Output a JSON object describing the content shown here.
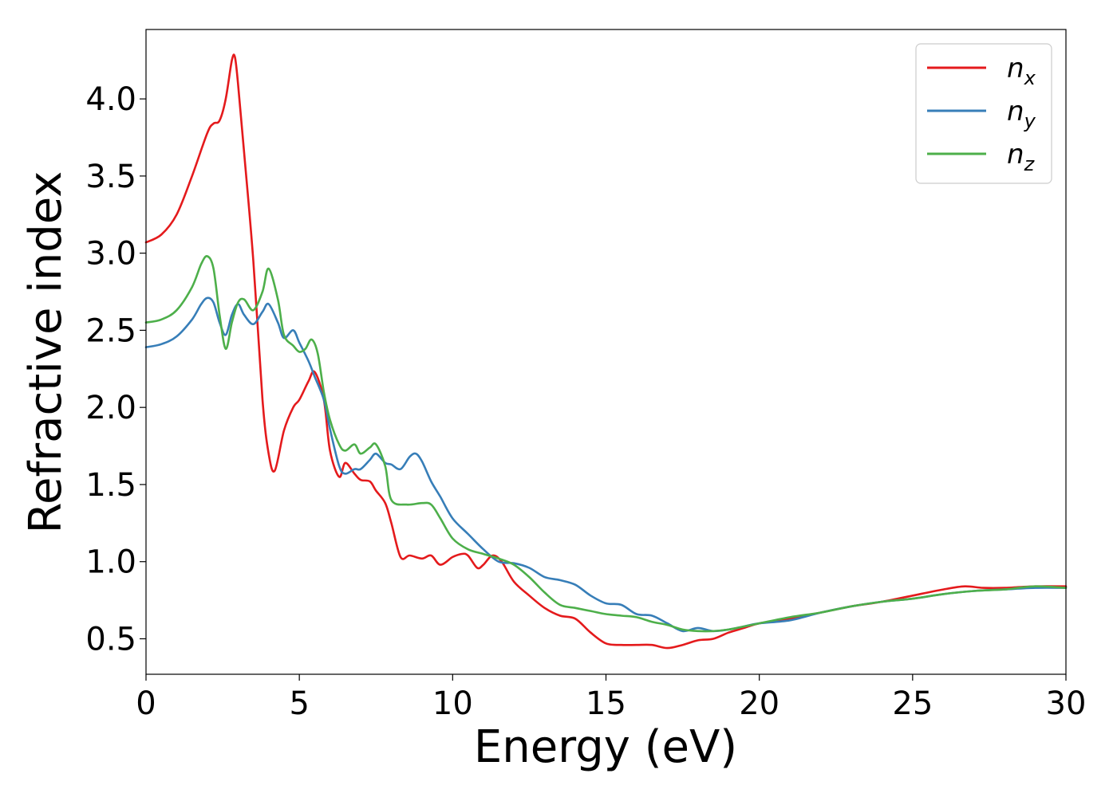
{
  "chart_data": {
    "type": "line",
    "xlabel": "Energy (eV)",
    "ylabel": "Refractive index",
    "xlim": [
      0,
      30
    ],
    "ylim": [
      0.27,
      4.45
    ],
    "xticks": [
      0,
      5,
      10,
      15,
      20,
      25,
      30
    ],
    "xtick_labels": [
      "0",
      "5",
      "10",
      "15",
      "20",
      "25",
      "30"
    ],
    "yticks": [
      0.5,
      1.0,
      1.5,
      2.0,
      2.5,
      3.0,
      3.5,
      4.0
    ],
    "ytick_labels": [
      "0.5",
      "1.0",
      "1.5",
      "2.0",
      "2.5",
      "3.0",
      "3.5",
      "4.0"
    ],
    "grid": false,
    "legend_position": "top-right",
    "series": [
      {
        "name_base": "n",
        "name_sub": "x",
        "color": "#e41a1c",
        "x": [
          0,
          0.5,
          1.0,
          1.5,
          2.0,
          2.2,
          2.4,
          2.6,
          2.8,
          2.9,
          3.0,
          3.2,
          3.5,
          3.8,
          4.0,
          4.2,
          4.5,
          4.8,
          5.0,
          5.3,
          5.5,
          5.8,
          6.0,
          6.3,
          6.5,
          6.8,
          7.0,
          7.3,
          7.5,
          7.8,
          8.0,
          8.3,
          8.6,
          9.0,
          9.3,
          9.6,
          10.0,
          10.3,
          10.5,
          10.8,
          11.0,
          11.3,
          11.6,
          12.0,
          12.5,
          13.0,
          13.5,
          14.0,
          14.5,
          15.0,
          15.5,
          16.0,
          16.5,
          17.0,
          17.5,
          18.0,
          18.5,
          19.0,
          19.5,
          20.0,
          21.0,
          22.0,
          23.0,
          24.0,
          25.0,
          26.0,
          26.7,
          27.3,
          28.0,
          29.0,
          30.0
        ],
        "y": [
          3.07,
          3.12,
          3.25,
          3.5,
          3.78,
          3.84,
          3.86,
          4.0,
          4.25,
          4.27,
          4.1,
          3.65,
          2.95,
          2.05,
          1.7,
          1.59,
          1.85,
          2.0,
          2.05,
          2.17,
          2.23,
          2.05,
          1.72,
          1.55,
          1.64,
          1.57,
          1.53,
          1.52,
          1.46,
          1.38,
          1.25,
          1.03,
          1.04,
          1.02,
          1.04,
          0.98,
          1.03,
          1.05,
          1.04,
          0.96,
          0.98,
          1.04,
          1.0,
          0.87,
          0.78,
          0.7,
          0.65,
          0.63,
          0.54,
          0.47,
          0.46,
          0.46,
          0.46,
          0.44,
          0.46,
          0.49,
          0.5,
          0.54,
          0.57,
          0.6,
          0.63,
          0.67,
          0.71,
          0.74,
          0.78,
          0.82,
          0.84,
          0.83,
          0.83,
          0.84,
          0.84
        ]
      },
      {
        "name_base": "n",
        "name_sub": "y",
        "color": "#377eb8",
        "x": [
          0,
          0.5,
          1.0,
          1.5,
          1.8,
          2.0,
          2.2,
          2.4,
          2.6,
          2.8,
          3.0,
          3.2,
          3.5,
          3.8,
          4.0,
          4.3,
          4.5,
          4.8,
          5.0,
          5.3,
          5.5,
          5.8,
          6.0,
          6.3,
          6.5,
          6.8,
          7.0,
          7.3,
          7.5,
          7.8,
          8.0,
          8.3,
          8.6,
          8.8,
          9.0,
          9.3,
          9.6,
          10.0,
          10.5,
          11.0,
          11.5,
          12.0,
          12.5,
          13.0,
          13.5,
          14.0,
          14.5,
          15.0,
          15.5,
          16.0,
          16.5,
          17.0,
          17.5,
          18.0,
          18.5,
          19.0,
          19.5,
          20.0,
          21.0,
          22.0,
          23.0,
          24.0,
          25.0,
          26.0,
          27.0,
          28.0,
          29.0,
          30.0
        ],
        "y": [
          2.39,
          2.41,
          2.46,
          2.57,
          2.67,
          2.71,
          2.68,
          2.55,
          2.47,
          2.6,
          2.67,
          2.6,
          2.54,
          2.62,
          2.67,
          2.55,
          2.45,
          2.5,
          2.42,
          2.3,
          2.2,
          2.05,
          1.86,
          1.62,
          1.57,
          1.6,
          1.6,
          1.66,
          1.7,
          1.64,
          1.63,
          1.6,
          1.68,
          1.7,
          1.65,
          1.52,
          1.42,
          1.28,
          1.18,
          1.08,
          1.0,
          0.99,
          0.96,
          0.9,
          0.88,
          0.85,
          0.78,
          0.73,
          0.72,
          0.66,
          0.65,
          0.6,
          0.55,
          0.57,
          0.55,
          0.56,
          0.58,
          0.6,
          0.62,
          0.67,
          0.71,
          0.74,
          0.76,
          0.79,
          0.81,
          0.82,
          0.83,
          0.83
        ]
      },
      {
        "name_base": "n",
        "name_sub": "z",
        "color": "#4daf4a",
        "x": [
          0,
          0.5,
          1.0,
          1.5,
          1.8,
          2.0,
          2.2,
          2.4,
          2.6,
          2.8,
          3.0,
          3.2,
          3.5,
          3.8,
          4.0,
          4.3,
          4.5,
          4.8,
          5.0,
          5.2,
          5.4,
          5.6,
          5.8,
          6.0,
          6.3,
          6.5,
          6.8,
          7.0,
          7.3,
          7.5,
          7.8,
          8.0,
          8.5,
          9.0,
          9.3,
          9.6,
          10.0,
          10.5,
          11.0,
          11.5,
          12.0,
          12.5,
          13.0,
          13.5,
          14.0,
          14.5,
          15.0,
          15.5,
          16.0,
          16.5,
          17.0,
          17.5,
          18.0,
          18.5,
          19.0,
          19.5,
          20.0,
          21.0,
          22.0,
          23.0,
          24.0,
          25.0,
          26.0,
          27.0,
          28.0,
          29.0,
          30.0
        ],
        "y": [
          2.55,
          2.57,
          2.63,
          2.78,
          2.93,
          2.98,
          2.9,
          2.6,
          2.38,
          2.55,
          2.68,
          2.7,
          2.63,
          2.75,
          2.9,
          2.7,
          2.47,
          2.4,
          2.36,
          2.38,
          2.44,
          2.35,
          2.1,
          1.92,
          1.76,
          1.72,
          1.76,
          1.7,
          1.74,
          1.76,
          1.62,
          1.4,
          1.37,
          1.38,
          1.37,
          1.28,
          1.15,
          1.08,
          1.05,
          1.02,
          0.98,
          0.9,
          0.8,
          0.72,
          0.7,
          0.68,
          0.66,
          0.65,
          0.64,
          0.61,
          0.59,
          0.56,
          0.55,
          0.55,
          0.56,
          0.58,
          0.6,
          0.64,
          0.67,
          0.71,
          0.74,
          0.76,
          0.79,
          0.81,
          0.82,
          0.84,
          0.83
        ]
      }
    ]
  }
}
